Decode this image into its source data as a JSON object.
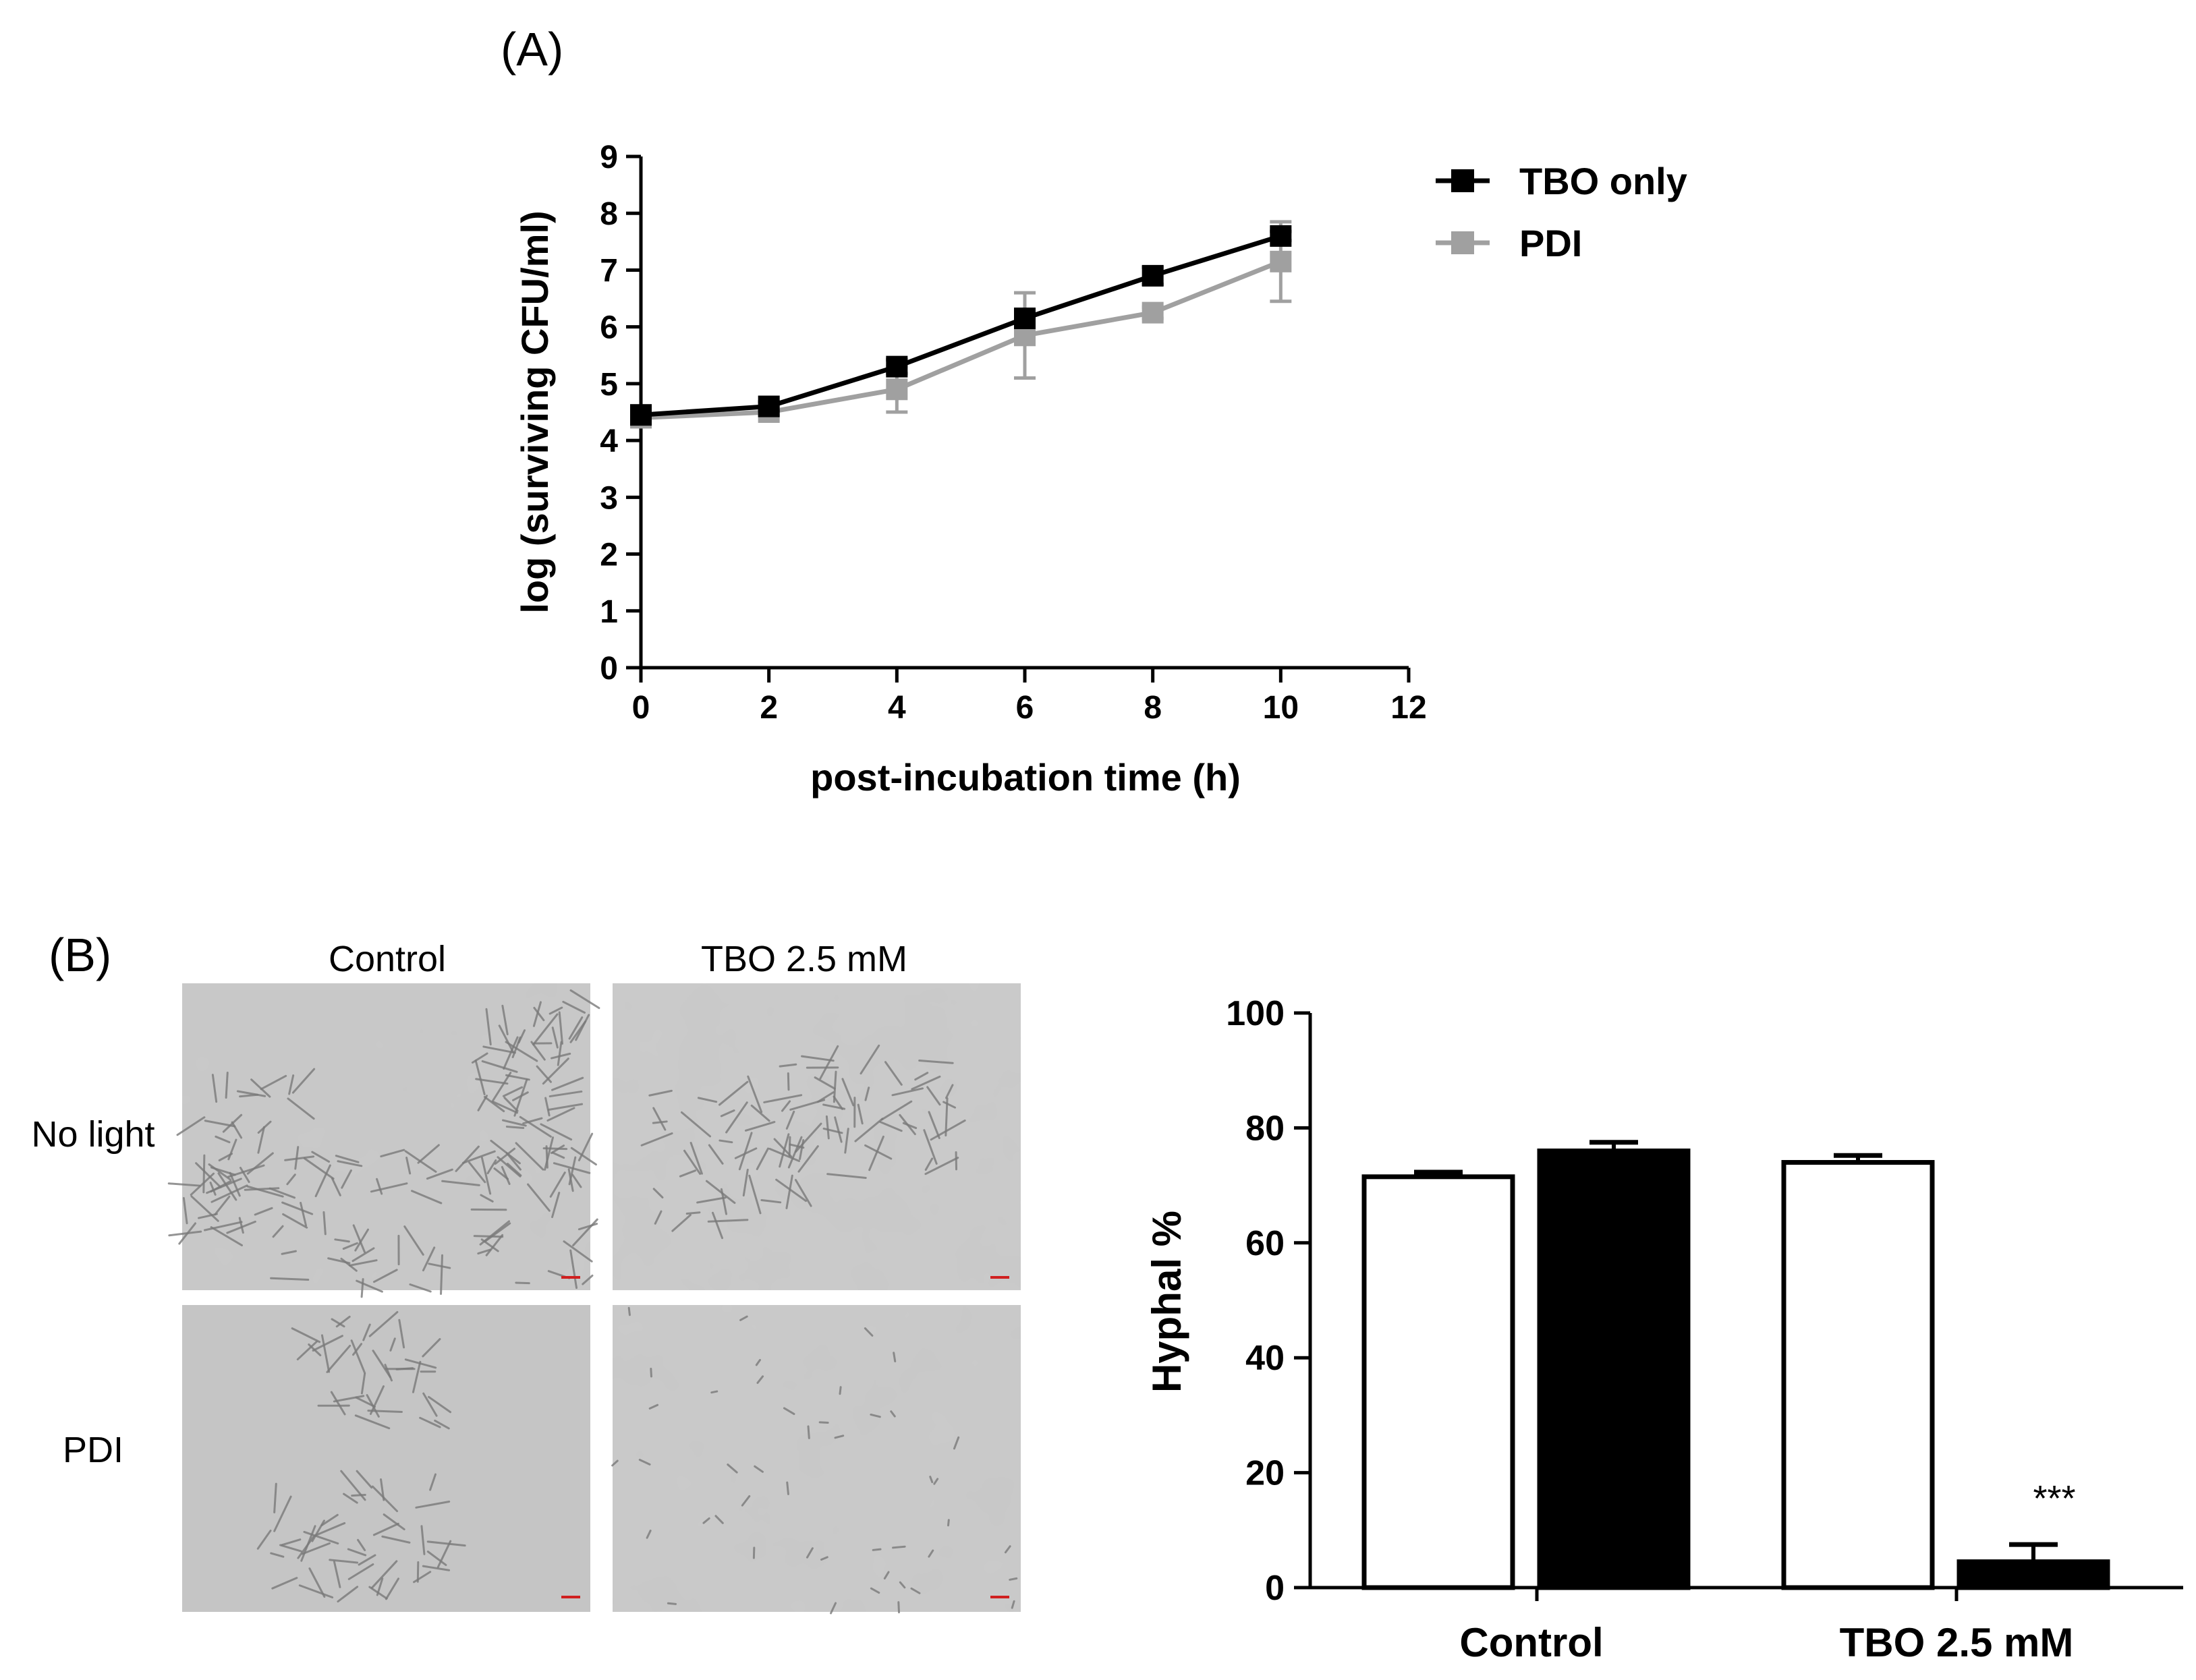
{
  "panel_a_label": "(A)",
  "panel_b_label": "(B)",
  "micrographs": {
    "col_labels": [
      "Control",
      "TBO 2.5 mM"
    ],
    "row_labels": [
      "No light",
      "PDI"
    ]
  },
  "chart_data": [
    {
      "type": "line",
      "title": "",
      "xlabel": "post-incubation time (h)",
      "ylabel": "log (surviving CFU/ml)",
      "xlim": [
        0,
        12
      ],
      "ylim": [
        0,
        9
      ],
      "xticks": [
        "0",
        "2",
        "4",
        "6",
        "8",
        "10",
        "12"
      ],
      "yticks": [
        "0",
        "1",
        "2",
        "3",
        "4",
        "5",
        "6",
        "7",
        "8",
        "9"
      ],
      "x": [
        0,
        2,
        4,
        6,
        8,
        10
      ],
      "series": [
        {
          "name": "TBO only",
          "color": "#000000",
          "values": [
            4.45,
            4.6,
            5.3,
            6.15,
            6.9,
            7.6
          ],
          "err": [
            0.03,
            0.08,
            0.12,
            0.1,
            0.15,
            0.08
          ]
        },
        {
          "name": "PDI",
          "color": "#a0a0a0",
          "values": [
            4.4,
            4.5,
            4.9,
            5.85,
            6.25,
            7.15
          ],
          "err": [
            0.03,
            0.05,
            0.4,
            0.75,
            0.1,
            0.7
          ]
        }
      ],
      "legend": "top-right"
    },
    {
      "type": "bar",
      "title": "",
      "xlabel": "",
      "ylabel": "Hyphal %",
      "ylim": [
        0,
        100
      ],
      "yticks": [
        "0",
        "20",
        "40",
        "60",
        "80",
        "100"
      ],
      "categories": [
        "Control",
        "TBO 2.5 mM"
      ],
      "series": [
        {
          "name": "No light",
          "color": "#ffffff",
          "values": [
            71.5,
            74
          ],
          "err": [
            0.8,
            1.2
          ]
        },
        {
          "name": "PDI",
          "color": "#000000",
          "values": [
            76,
            4.5
          ],
          "err": [
            1.5,
            3
          ]
        }
      ],
      "annotations": [
        "",
        "***"
      ]
    }
  ]
}
